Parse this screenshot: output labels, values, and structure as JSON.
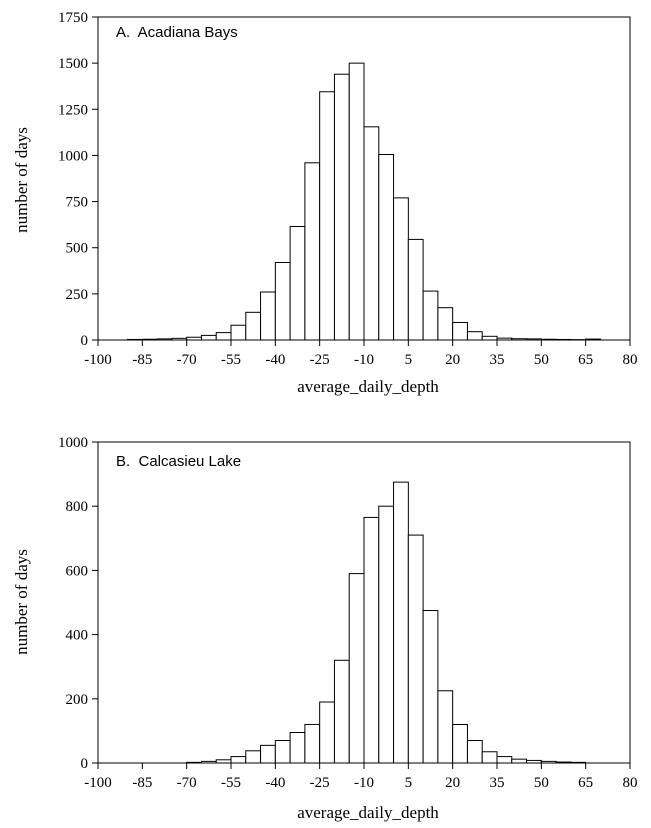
{
  "chart_data": [
    {
      "type": "bar",
      "title": "A.  Acadiana Bays",
      "xlabel": "average_daily_depth",
      "ylabel": "number of days",
      "xlim": [
        -100,
        80
      ],
      "ylim": [
        0,
        1750
      ],
      "xticks": [
        -100,
        -85,
        -70,
        -55,
        -40,
        -25,
        -10,
        5,
        20,
        35,
        50,
        65,
        80
      ],
      "yticks": [
        0,
        250,
        500,
        750,
        1000,
        1250,
        1500,
        1750
      ],
      "bin_width": 5,
      "bin_starts": [
        -90,
        -85,
        -80,
        -75,
        -70,
        -65,
        -60,
        -55,
        -50,
        -45,
        -40,
        -35,
        -30,
        -25,
        -20,
        -15,
        -10,
        -5,
        0,
        5,
        10,
        15,
        20,
        25,
        30,
        35,
        40,
        45,
        50,
        55,
        60,
        65
      ],
      "values": [
        3,
        4,
        6,
        9,
        15,
        25,
        40,
        80,
        150,
        260,
        420,
        615,
        960,
        1345,
        1440,
        1500,
        1155,
        1005,
        770,
        545,
        265,
        175,
        95,
        45,
        20,
        10,
        7,
        6,
        4,
        3,
        2,
        5
      ]
    },
    {
      "type": "bar",
      "title": "B.  Calcasieu Lake",
      "xlabel": "average_daily_depth",
      "ylabel": "number of days",
      "xlim": [
        -100,
        80
      ],
      "ylim": [
        0,
        1000
      ],
      "xticks": [
        -100,
        -85,
        -70,
        -55,
        -40,
        -25,
        -10,
        5,
        20,
        35,
        50,
        65,
        80
      ],
      "yticks": [
        0,
        200,
        400,
        600,
        800,
        1000
      ],
      "bin_width": 5,
      "bin_starts": [
        -70,
        -65,
        -60,
        -55,
        -50,
        -45,
        -40,
        -35,
        -30,
        -25,
        -20,
        -15,
        -10,
        -5,
        0,
        5,
        10,
        15,
        20,
        25,
        30,
        35,
        40,
        45,
        50,
        55,
        60
      ],
      "values": [
        2,
        5,
        10,
        20,
        38,
        55,
        70,
        95,
        120,
        190,
        320,
        590,
        765,
        800,
        875,
        710,
        475,
        225,
        120,
        70,
        35,
        20,
        12,
        8,
        5,
        3,
        2
      ]
    }
  ]
}
